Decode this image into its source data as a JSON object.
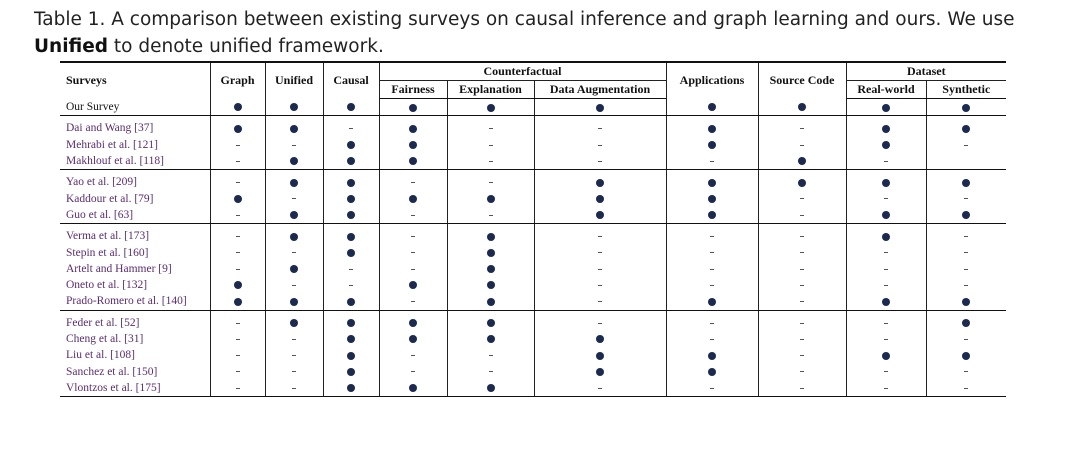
{
  "caption": {
    "prefix": "Table 1.  A comparison between existing surveys on causal inference and graph learning and ours. We use",
    "bold": "Unified",
    "suffix": " to denote unified framework."
  },
  "headers": {
    "surveys": "Surveys",
    "graph": "Graph",
    "unified": "Unified",
    "causal": "Causal",
    "counterfactual": "Counterfactual",
    "fairness": "Fairness",
    "explanation": "Explanation",
    "data_augmentation": "Data Augmentation",
    "applications": "Applications",
    "source_code": "Source Code",
    "dataset": "Dataset",
    "real_world": "Real-world",
    "synthetic": "Synthetic"
  },
  "legend": {
    "yes": "●",
    "no": "-"
  },
  "rows": [
    {
      "name": "Our Survey",
      "cells": [
        1,
        1,
        1,
        1,
        1,
        1,
        1,
        1,
        1,
        1
      ]
    },
    {
      "name": "Dai and Wang [37]",
      "cells": [
        1,
        1,
        0,
        1,
        0,
        0,
        1,
        0,
        1,
        1
      ]
    },
    {
      "name": "Mehrabi et al. [121]",
      "cells": [
        0,
        0,
        1,
        1,
        0,
        0,
        1,
        0,
        1,
        0
      ]
    },
    {
      "name": "Makhlouf et al. [118]",
      "cells": [
        0,
        1,
        1,
        1,
        0,
        0,
        0,
        1,
        0,
        null
      ]
    },
    {
      "name": "Yao et al. [209]",
      "cells": [
        0,
        1,
        1,
        0,
        0,
        1,
        1,
        1,
        1,
        1
      ]
    },
    {
      "name": "Kaddour et al. [79]",
      "cells": [
        1,
        0,
        1,
        1,
        1,
        1,
        1,
        0,
        0,
        0
      ]
    },
    {
      "name": "Guo et al. [63]",
      "cells": [
        0,
        1,
        1,
        0,
        0,
        1,
        1,
        0,
        1,
        1
      ]
    },
    {
      "name": "Verma et al. [173]",
      "cells": [
        0,
        1,
        1,
        0,
        1,
        0,
        0,
        0,
        1,
        0
      ]
    },
    {
      "name": "Stepin et al. [160]",
      "cells": [
        0,
        0,
        1,
        0,
        1,
        0,
        0,
        0,
        0,
        0
      ]
    },
    {
      "name": "Artelt and Hammer [9]",
      "cells": [
        0,
        1,
        0,
        0,
        1,
        0,
        0,
        0,
        0,
        0
      ]
    },
    {
      "name": "Oneto et al. [132]",
      "cells": [
        1,
        0,
        0,
        1,
        1,
        0,
        0,
        0,
        0,
        0
      ]
    },
    {
      "name": "Prado-Romero et al. [140]",
      "cells": [
        1,
        1,
        1,
        0,
        1,
        0,
        1,
        0,
        1,
        1
      ]
    },
    {
      "name": "Feder et al. [52]",
      "cells": [
        0,
        1,
        1,
        1,
        1,
        0,
        0,
        0,
        0,
        1
      ]
    },
    {
      "name": "Cheng et al. [31]",
      "cells": [
        0,
        0,
        1,
        1,
        1,
        1,
        0,
        0,
        0,
        0
      ]
    },
    {
      "name": "Liu et al. [108]",
      "cells": [
        0,
        0,
        1,
        0,
        0,
        1,
        1,
        0,
        1,
        1
      ]
    },
    {
      "name": "Sanchez et al. [150]",
      "cells": [
        0,
        0,
        1,
        0,
        0,
        1,
        1,
        0,
        0,
        0
      ]
    },
    {
      "name": "Vlontzos et al. [175]",
      "cells": [
        0,
        0,
        1,
        1,
        1,
        0,
        0,
        0,
        0,
        0
      ]
    }
  ],
  "colors": {
    "dot": "#1b2a4e",
    "name": "#5a2d6e"
  }
}
